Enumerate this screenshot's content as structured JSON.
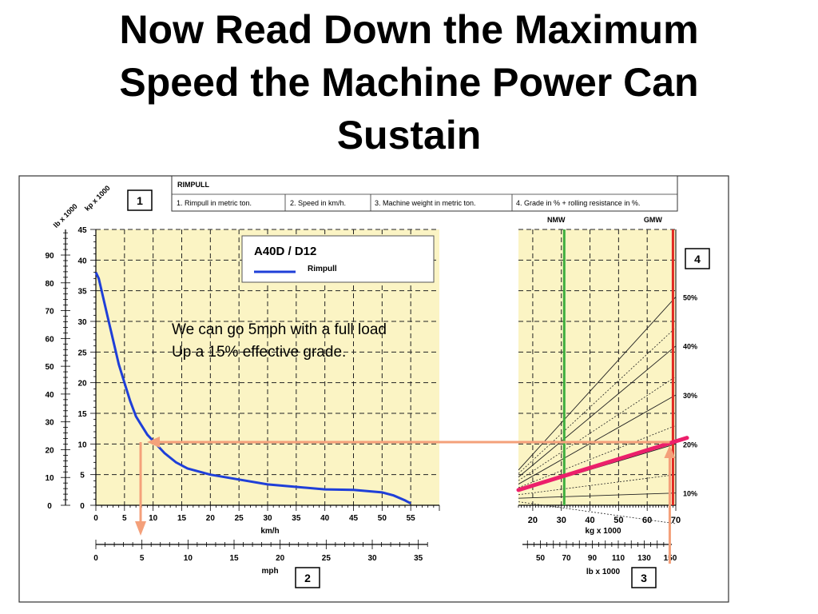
{
  "slide": {
    "title_lines": [
      "Now Read Down the Maximum",
      "Speed the Machine Power Can",
      "Sustain"
    ],
    "annotation_lines": [
      "We can go 5mph with a full load",
      "Up a 15% effective grade."
    ]
  },
  "header": {
    "heading": "RIMPULL",
    "steps": [
      "1. Rimpull in metric ton.",
      "2. Speed in km/h.",
      "3. Machine weight in metric ton.",
      "4. Grade in % + rolling resistance in %."
    ]
  },
  "step_boxes": [
    "1",
    "2",
    "3",
    "4"
  ],
  "colors": {
    "panel": "#fbf4c4",
    "curve": "#1f3fd8",
    "guide": "#f4a07a",
    "load_line": "#ec1f6b",
    "nmw": "#3fae3f",
    "gmw": "#e22a22"
  },
  "chart_data": [
    {
      "type": "line",
      "title": "A40D / D12",
      "legend_entry": "Rimpull",
      "left_axis_outer": {
        "label": "lb x 1000",
        "ticks": [
          0,
          10,
          20,
          30,
          40,
          50,
          60,
          70,
          80,
          90
        ]
      },
      "left_axis_inner": {
        "label": "kp x 1000",
        "ticks": [
          0,
          5,
          10,
          15,
          20,
          25,
          30,
          35,
          40,
          45
        ],
        "range": [
          0,
          45
        ]
      },
      "x_axis_primary": {
        "label": "km/h",
        "ticks": [
          0,
          5,
          10,
          15,
          20,
          25,
          30,
          35,
          40,
          45,
          50,
          55
        ],
        "range": [
          0,
          60
        ]
      },
      "x_axis_secondary": {
        "label": "mph",
        "ticks": [
          0,
          5,
          10,
          15,
          20,
          25,
          30,
          35
        ]
      },
      "series": [
        {
          "name": "Rimpull",
          "x": [
            0,
            0.5,
            1,
            2,
            3,
            4,
            5,
            6,
            7,
            8,
            9,
            10,
            12,
            14,
            16,
            18,
            20,
            25,
            30,
            35,
            40,
            45,
            50,
            52,
            54,
            55
          ],
          "y": [
            38,
            37,
            35,
            31,
            27,
            23,
            20,
            17,
            14.5,
            13,
            11.5,
            10.5,
            8.5,
            7,
            6,
            5.5,
            5,
            4.2,
            3.4,
            3.0,
            2.6,
            2.5,
            2.1,
            1.6,
            0.8,
            0.3
          ]
        }
      ],
      "grid": true
    },
    {
      "type": "line",
      "top_labels": [
        "NMW",
        "GMW"
      ],
      "x_axis_primary": {
        "label": "kg x 1000",
        "ticks": [
          20,
          30,
          40,
          50,
          60,
          70
        ],
        "range": [
          15,
          70
        ]
      },
      "x_axis_secondary": {
        "label": "lb x 1000",
        "ticks": [
          50,
          70,
          90,
          110,
          130,
          150
        ]
      },
      "grade_labels": [
        "50%",
        "40%",
        "30%",
        "20%",
        "10%"
      ],
      "grade_right_values": [
        50,
        40,
        30,
        20,
        10
      ],
      "nmw_value": 31,
      "gmw_value": 69,
      "effective_grade_percent": 15,
      "grid": true
    }
  ]
}
